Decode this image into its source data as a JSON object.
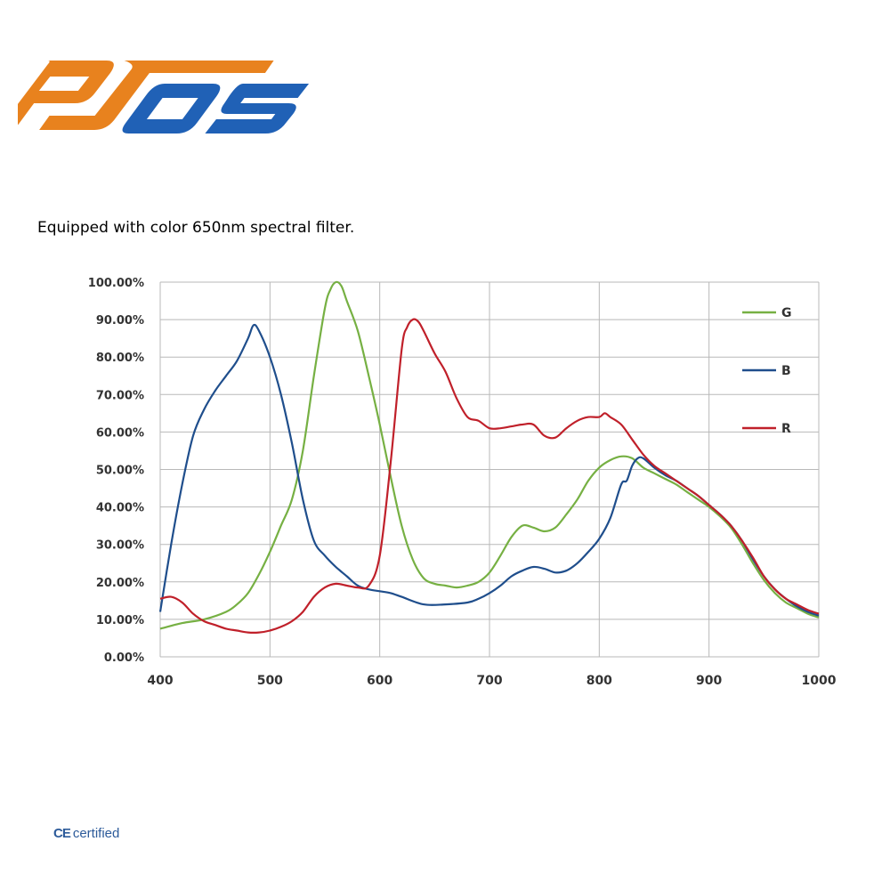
{
  "brand": {
    "logo_text": "OJOS"
  },
  "caption": "Equipped with color 650nm spectral filter.",
  "badge": {
    "mark": "CE",
    "label": "certified"
  },
  "colors": {
    "G": "#76b043",
    "B": "#1f4e8c",
    "R": "#c0202a",
    "grid": "#b8b8b8"
  },
  "chart_data": {
    "type": "line",
    "title": "",
    "xlabel": "",
    "ylabel": "",
    "xlim": [
      400,
      1000
    ],
    "ylim": [
      0,
      100
    ],
    "x_ticks": [
      400,
      500,
      600,
      700,
      800,
      900,
      1000
    ],
    "y_ticks": [
      0,
      10,
      20,
      30,
      40,
      50,
      60,
      70,
      80,
      90,
      100
    ],
    "y_tick_format": "percent_2dp",
    "grid": true,
    "legend_position": "top-right",
    "series": [
      {
        "name": "G",
        "color": "#76b043",
        "x": [
          400,
          420,
          440,
          460,
          470,
          480,
          490,
          500,
          510,
          520,
          530,
          540,
          550,
          555,
          560,
          565,
          570,
          580,
          590,
          600,
          610,
          620,
          630,
          640,
          650,
          660,
          670,
          680,
          690,
          700,
          710,
          720,
          730,
          740,
          750,
          760,
          770,
          780,
          790,
          800,
          810,
          820,
          830,
          840,
          850,
          860,
          870,
          880,
          890,
          900,
          910,
          920,
          930,
          940,
          950,
          960,
          970,
          980,
          990,
          1000
        ],
        "y": [
          7.5,
          9,
          10,
          12,
          14,
          17,
          22,
          28,
          35,
          42,
          55,
          75,
          93,
          98,
          100,
          99,
          95,
          87,
          75,
          62,
          48,
          35,
          26,
          21,
          19.5,
          19,
          18.5,
          19,
          20,
          22.5,
          27,
          32,
          35,
          34.5,
          33.5,
          34.5,
          38,
          42,
          47,
          50.5,
          52.5,
          53.5,
          53,
          50.5,
          49,
          47.5,
          46,
          44,
          42,
          40,
          37.5,
          34.5,
          30,
          25,
          20.5,
          17,
          14.5,
          13,
          11.5,
          10.5
        ]
      },
      {
        "name": "B",
        "color": "#1f4e8c",
        "x": [
          400,
          410,
          420,
          430,
          440,
          450,
          460,
          470,
          480,
          485,
          490,
          500,
          510,
          520,
          530,
          540,
          550,
          560,
          570,
          580,
          590,
          600,
          610,
          620,
          640,
          660,
          680,
          690,
          700,
          710,
          720,
          730,
          740,
          750,
          760,
          770,
          780,
          790,
          800,
          810,
          820,
          825,
          830,
          835,
          840,
          850,
          860,
          870,
          880,
          890,
          900,
          910,
          920,
          930,
          940,
          950,
          960,
          970,
          980,
          990,
          1000
        ],
        "y": [
          12,
          30,
          46,
          59,
          66,
          71,
          75,
          79,
          85,
          88.5,
          87,
          80,
          70,
          57,
          42,
          31,
          27,
          24,
          21.5,
          19,
          18,
          17.5,
          17,
          16,
          14,
          14,
          14.5,
          15.5,
          17,
          19,
          21.5,
          23,
          24,
          23.5,
          22.5,
          23,
          25,
          28,
          31.5,
          37,
          46,
          47,
          51,
          53,
          53,
          50.5,
          48.5,
          47,
          45,
          43,
          40.5,
          38,
          35,
          31,
          26,
          21.5,
          18,
          15.5,
          13.5,
          12,
          11
        ]
      },
      {
        "name": "R",
        "color": "#c0202a",
        "x": [
          400,
          410,
          420,
          430,
          440,
          450,
          460,
          470,
          480,
          490,
          500,
          510,
          520,
          530,
          540,
          550,
          560,
          570,
          580,
          590,
          600,
          610,
          620,
          625,
          630,
          635,
          640,
          650,
          660,
          670,
          680,
          690,
          700,
          710,
          720,
          730,
          740,
          750,
          760,
          770,
          780,
          790,
          800,
          805,
          810,
          820,
          830,
          840,
          850,
          860,
          870,
          880,
          890,
          900,
          910,
          920,
          930,
          940,
          950,
          960,
          970,
          980,
          990,
          1000
        ],
        "y": [
          15.5,
          16,
          14.5,
          11.5,
          9.5,
          8.5,
          7.5,
          7,
          6.5,
          6.5,
          7,
          8,
          9.5,
          12,
          16,
          18.5,
          19.5,
          19,
          18.5,
          19,
          27,
          52,
          82,
          88,
          90,
          89.5,
          87,
          81,
          76,
          69,
          64,
          63,
          61,
          61,
          61.5,
          62,
          62,
          59,
          58.5,
          61,
          63,
          64,
          64,
          65,
          64,
          62,
          58,
          54,
          51,
          49,
          47,
          45,
          43,
          40.5,
          38,
          35,
          31,
          26.5,
          21.5,
          18,
          15.5,
          14,
          12.5,
          11.5
        ]
      }
    ]
  }
}
